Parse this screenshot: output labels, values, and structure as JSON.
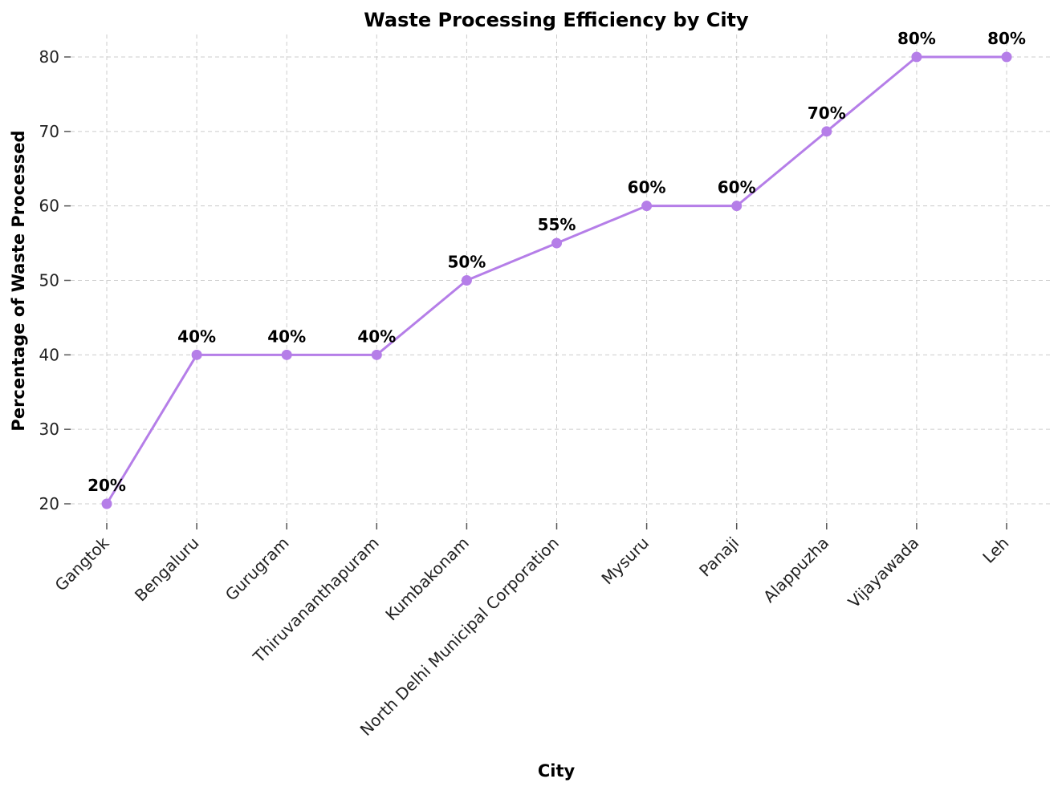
{
  "chart_data": {
    "type": "line",
    "title": "Waste Processing Efficiency by City",
    "xlabel": "City",
    "ylabel": "Percentage of Waste Processed",
    "categories": [
      "Gangtok",
      "Bengaluru",
      "Gurugram",
      "Thiruvananthapuram",
      "Kumbakonam",
      "North Delhi Municipal Corporation",
      "Mysuru",
      "Panaji",
      "Alappuzha",
      "Vijayawada",
      "Leh"
    ],
    "values": [
      20,
      40,
      40,
      40,
      50,
      55,
      60,
      60,
      70,
      80,
      80
    ],
    "data_labels": [
      "20%",
      "40%",
      "40%",
      "40%",
      "50%",
      "55%",
      "60%",
      "60%",
      "70%",
      "80%",
      "80%"
    ],
    "yticks": [
      20,
      30,
      40,
      50,
      60,
      70,
      80
    ],
    "ylim": [
      17.5,
      83
    ],
    "grid": true,
    "legend": false,
    "color": "#b57ee8"
  }
}
